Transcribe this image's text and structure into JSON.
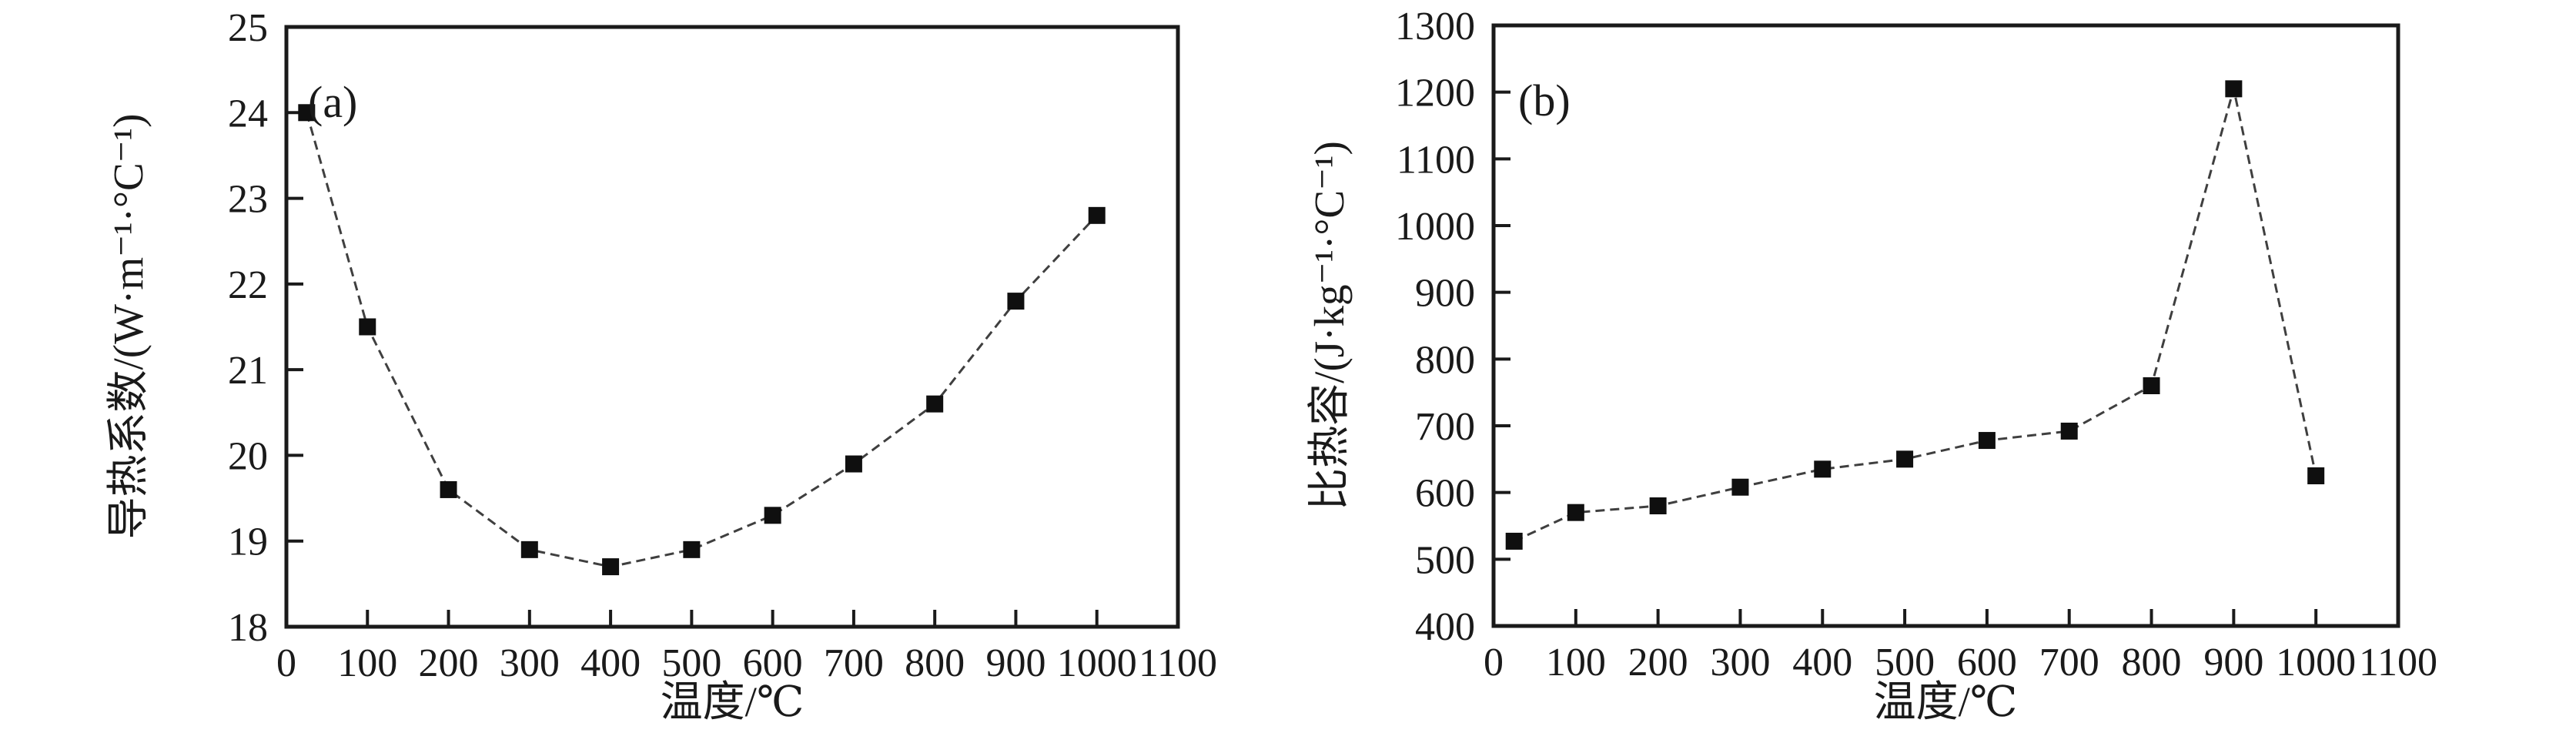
{
  "figure": {
    "background_color": "#ffffff",
    "axis_color": "#1a1a1a",
    "line_color": "#3f3f3f",
    "marker_color": "#0f0f0f",
    "text_color": "#1a1a1a",
    "marker_shape": "filled-square"
  },
  "chart_data": [
    {
      "id": "a",
      "type": "line",
      "panel_label": "(a)",
      "xlabel": "温度/℃",
      "ylabel": "导热系数/(W·m⁻¹·°C⁻¹)",
      "x": [
        25,
        100,
        200,
        300,
        400,
        500,
        600,
        700,
        800,
        900,
        1000
      ],
      "values": [
        24.0,
        21.5,
        19.6,
        18.9,
        18.7,
        18.9,
        19.3,
        19.9,
        20.6,
        21.8,
        22.8
      ],
      "xlim": [
        0,
        1100
      ],
      "ylim": [
        18,
        25
      ],
      "x_ticks": [
        0,
        100,
        200,
        300,
        400,
        500,
        600,
        700,
        800,
        900,
        1000,
        1100
      ],
      "y_ticks": [
        18,
        19,
        20,
        21,
        22,
        23,
        24,
        25
      ],
      "grid": false,
      "legend": null
    },
    {
      "id": "b",
      "type": "line",
      "panel_label": "(b)",
      "xlabel": "温度/℃",
      "ylabel": "比热容/(J·kg⁻¹·°C⁻¹)",
      "x": [
        25,
        100,
        200,
        300,
        400,
        500,
        600,
        700,
        800,
        900,
        1000
      ],
      "values": [
        527,
        570,
        580,
        608,
        635,
        650,
        678,
        692,
        760,
        1205,
        625
      ],
      "xlim": [
        0,
        1100
      ],
      "ylim": [
        400,
        1300
      ],
      "x_ticks": [
        0,
        100,
        200,
        300,
        400,
        500,
        600,
        700,
        800,
        900,
        1000,
        1100
      ],
      "y_ticks": [
        400,
        500,
        600,
        700,
        800,
        900,
        1000,
        1100,
        1200,
        1300
      ],
      "grid": false,
      "legend": null
    }
  ]
}
